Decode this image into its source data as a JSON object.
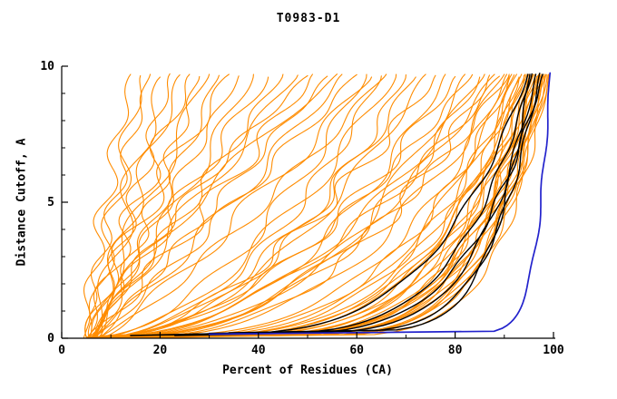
{
  "colors": {
    "model": "#ff8c00",
    "reference": "#000000",
    "best": "#2222cc",
    "axis": "#000000"
  },
  "chart_data": {
    "type": "line",
    "title": "T0983-D1",
    "xlabel": "Percent of Residues (CA)",
    "ylabel": "Distance Cutoff, A",
    "xlim": [
      0,
      100
    ],
    "ylim": [
      0,
      10
    ],
    "x_ticks": [
      0,
      20,
      40,
      60,
      80,
      100
    ],
    "y_ticks": [
      0,
      5,
      10
    ],
    "x_minor_ticks": [
      10,
      30,
      50,
      70,
      90
    ],
    "y_minor_ticks": [
      1,
      2,
      3,
      4,
      6,
      7,
      8,
      9
    ],
    "legend": "none",
    "grid": false,
    "curves": [
      {
        "c": "o",
        "x0": 4.5,
        "x1": 14,
        "k": 1.15,
        "w": 1.8,
        "f": 1.3,
        "p": 0.2,
        "ye": 9.7
      },
      {
        "c": "o",
        "x0": 5.5,
        "x1": 16,
        "k": 0.95,
        "w": 2.2,
        "f": 1.1,
        "p": 2.1,
        "ye": 9.65
      },
      {
        "c": "o",
        "x0": 5,
        "x1": 18,
        "k": 1.25,
        "w": 1.5,
        "f": 1.5,
        "p": 4.0,
        "ye": 9.7
      },
      {
        "c": "o",
        "x0": 6.5,
        "x1": 20,
        "k": 1.0,
        "w": 2.5,
        "f": 0.9,
        "p": 1.2,
        "ye": 9.6
      },
      {
        "c": "o",
        "x0": 5.8,
        "x1": 22,
        "k": 0.9,
        "w": 1.9,
        "f": 1.4,
        "p": 3.3,
        "ye": 9.72
      },
      {
        "c": "o",
        "x0": 7,
        "x1": 24,
        "k": 1.18,
        "w": 2.1,
        "f": 1.0,
        "p": 5.1,
        "ye": 9.68
      },
      {
        "c": "o",
        "x0": 5.2,
        "x1": 26,
        "k": 1.05,
        "w": 2.6,
        "f": 1.2,
        "p": 0.8,
        "ye": 9.7
      },
      {
        "c": "o",
        "x0": 6.8,
        "x1": 28,
        "k": 0.88,
        "w": 1.7,
        "f": 1.6,
        "p": 2.9,
        "ye": 9.62
      },
      {
        "c": "o",
        "x0": 5.6,
        "x1": 30,
        "k": 1.12,
        "w": 2.3,
        "f": 0.8,
        "p": 4.6,
        "ye": 9.7
      },
      {
        "c": "o",
        "x0": 7.5,
        "x1": 32,
        "k": 0.97,
        "w": 1.6,
        "f": 1.3,
        "p": 1.7,
        "ye": 9.66
      },
      {
        "c": "o",
        "x0": 5.1,
        "x1": 34,
        "k": 1.22,
        "w": 2.8,
        "f": 1.1,
        "p": 3.9,
        "ye": 9.7
      },
      {
        "c": "o",
        "x0": 6.3,
        "x1": 36,
        "k": 1.02,
        "w": 1.4,
        "f": 1.5,
        "p": 0.4,
        "ye": 9.64
      },
      {
        "c": "o",
        "x0": 5.9,
        "x1": 39,
        "k": 0.92,
        "w": 2.0,
        "f": 1.0,
        "p": 2.5,
        "ye": 9.7
      },
      {
        "c": "o",
        "x0": 7.2,
        "x1": 42,
        "k": 1.1,
        "w": 2.4,
        "f": 1.2,
        "p": 5.6,
        "ye": 9.6
      },
      {
        "c": "o",
        "x0": 5.4,
        "x1": 45,
        "k": 0.96,
        "w": 1.8,
        "f": 1.4,
        "p": 1.0,
        "ye": 9.7
      },
      {
        "c": "o",
        "x0": 6.6,
        "x1": 48,
        "k": 1.06,
        "w": 2.2,
        "f": 0.9,
        "p": 3.1,
        "ye": 9.67
      },
      {
        "c": "o",
        "x0": 5.3,
        "x1": 51,
        "k": 0.9,
        "w": 2.7,
        "f": 1.3,
        "p": 4.4,
        "ye": 9.7
      },
      {
        "c": "o",
        "x0": 7.8,
        "x1": 54,
        "k": 1.0,
        "w": 1.5,
        "f": 1.6,
        "p": 0.6,
        "ye": 9.63
      },
      {
        "c": "o",
        "x0": 5.7,
        "x1": 57,
        "k": 0.86,
        "w": 2.1,
        "f": 1.1,
        "p": 2.2,
        "ye": 9.7
      },
      {
        "c": "o",
        "x0": 6.9,
        "x1": 60,
        "k": 0.94,
        "w": 1.9,
        "f": 1.4,
        "p": 5.0,
        "ye": 9.69
      },
      {
        "c": "o",
        "x0": 8.5,
        "x1": 63,
        "k": 0.89,
        "w": 2.5,
        "f": 1.0,
        "p": 1.5,
        "ye": 9.6
      },
      {
        "c": "o",
        "x0": 7.4,
        "x1": 66,
        "k": 0.82,
        "w": 1.7,
        "f": 1.2,
        "p": 3.6,
        "ye": 9.7
      },
      {
        "c": "o",
        "x0": 6.1,
        "x1": 56,
        "k": 1.3,
        "w": 2.0,
        "f": 0.8,
        "p": 0.9,
        "ye": 9.71
      },
      {
        "c": "o",
        "x0": 8.0,
        "x1": 50,
        "k": 1.35,
        "w": 1.6,
        "f": 1.5,
        "p": 2.7,
        "ye": 9.65
      },
      {
        "c": "o",
        "x0": 6,
        "x1": 62,
        "k": 0.55,
        "w": 2.0,
        "f": 1.1,
        "p": 0.5,
        "ye": 9.7
      },
      {
        "c": "o",
        "x0": 7,
        "x1": 65,
        "k": 0.5,
        "w": 1.6,
        "f": 1.3,
        "p": 2.8,
        "ye": 9.64
      },
      {
        "c": "o",
        "x0": 8,
        "x1": 68,
        "k": 0.6,
        "w": 2.3,
        "f": 0.9,
        "p": 4.2,
        "ye": 9.7
      },
      {
        "c": "o",
        "x0": 6.5,
        "x1": 70,
        "k": 0.46,
        "w": 1.8,
        "f": 1.4,
        "p": 1.1,
        "ye": 9.68
      },
      {
        "c": "o",
        "x0": 9,
        "x1": 72,
        "k": 0.56,
        "w": 2.1,
        "f": 1.2,
        "p": 3.4,
        "ye": 9.6
      },
      {
        "c": "o",
        "x0": 7.2,
        "x1": 74,
        "k": 0.5,
        "w": 1.5,
        "f": 1.0,
        "p": 5.3,
        "ye": 9.7
      },
      {
        "c": "o",
        "x0": 10,
        "x1": 76,
        "k": 0.6,
        "w": 2.4,
        "f": 1.5,
        "p": 0.7,
        "ye": 9.66
      },
      {
        "c": "o",
        "x0": 8.2,
        "x1": 78,
        "k": 0.44,
        "w": 1.7,
        "f": 1.1,
        "p": 2.0,
        "ye": 9.7
      },
      {
        "c": "o",
        "x0": 6.2,
        "x1": 80,
        "k": 0.5,
        "w": 2.2,
        "f": 1.3,
        "p": 4.8,
        "ye": 9.62
      },
      {
        "c": "o",
        "x0": 9.5,
        "x1": 82,
        "k": 0.4,
        "w": 1.9,
        "f": 0.8,
        "p": 1.9,
        "ye": 9.7
      },
      {
        "c": "o",
        "x0": 7.6,
        "x1": 83.5,
        "k": 0.55,
        "w": 1.4,
        "f": 1.6,
        "p": 3.0,
        "ye": 9.69
      },
      {
        "c": "o",
        "x0": 10.5,
        "x1": 85,
        "k": 0.44,
        "w": 2.0,
        "f": 1.2,
        "p": 5.8,
        "ye": 9.6
      },
      {
        "c": "o",
        "x0": 8.4,
        "x1": 86,
        "k": 0.5,
        "w": 1.6,
        "f": 1.0,
        "p": 1.3,
        "ye": 9.7
      },
      {
        "c": "o",
        "x0": 11,
        "x1": 87,
        "k": 0.4,
        "w": 2.2,
        "f": 1.4,
        "p": 2.6,
        "ye": 9.67
      },
      {
        "c": "o",
        "x0": 9.2,
        "x1": 88,
        "k": 0.46,
        "w": 1.5,
        "f": 1.1,
        "p": 4.1,
        "ye": 9.7
      },
      {
        "c": "o",
        "x0": 7.8,
        "x1": 89,
        "k": 0.52,
        "w": 1.8,
        "f": 1.3,
        "p": 0.3,
        "ye": 9.63
      },
      {
        "c": "o",
        "x0": 12,
        "x1": 90,
        "k": 0.4,
        "w": 2.1,
        "f": 0.9,
        "p": 2.4,
        "ye": 9.7
      },
      {
        "c": "o",
        "x0": 10.2,
        "x1": 91,
        "k": 0.47,
        "w": 1.6,
        "f": 1.5,
        "p": 5.5,
        "ye": 9.7
      },
      {
        "c": "o",
        "x0": 6,
        "x1": 90.5,
        "k": 0.3,
        "w": 1.2,
        "f": 1.2,
        "p": 0.4,
        "ye": 9.7
      },
      {
        "c": "o",
        "x0": 8,
        "x1": 91,
        "k": 0.27,
        "w": 0.9,
        "f": 1.0,
        "p": 1.8,
        "ye": 9.65
      },
      {
        "c": "o",
        "x0": 10,
        "x1": 91.5,
        "k": 0.3,
        "w": 1.4,
        "f": 1.4,
        "p": 3.2,
        "ye": 9.7
      },
      {
        "c": "o",
        "x0": 7,
        "x1": 92,
        "k": 0.24,
        "w": 1.0,
        "f": 1.1,
        "p": 4.7,
        "ye": 9.68
      },
      {
        "c": "o",
        "x0": 12,
        "x1": 92.5,
        "k": 0.28,
        "w": 1.3,
        "f": 1.3,
        "p": 0.9,
        "ye": 9.7
      },
      {
        "c": "o",
        "x0": 9,
        "x1": 93,
        "k": 0.22,
        "w": 0.8,
        "f": 0.9,
        "p": 2.3,
        "ye": 9.6
      },
      {
        "c": "o",
        "x0": 14,
        "x1": 93.5,
        "k": 0.26,
        "w": 1.1,
        "f": 1.5,
        "p": 3.8,
        "ye": 9.7
      },
      {
        "c": "o",
        "x0": 11,
        "x1": 94,
        "k": 0.2,
        "w": 1.2,
        "f": 1.2,
        "p": 5.2,
        "ye": 9.66
      },
      {
        "c": "o",
        "x0": 8.5,
        "x1": 94.5,
        "k": 0.24,
        "w": 0.9,
        "f": 1.0,
        "p": 1.4,
        "ye": 9.7
      },
      {
        "c": "o",
        "x0": 13,
        "x1": 95,
        "k": 0.19,
        "w": 1.0,
        "f": 1.3,
        "p": 2.9,
        "ye": 9.7
      },
      {
        "c": "o",
        "x0": 10.5,
        "x1": 95.3,
        "k": 0.22,
        "w": 1.3,
        "f": 1.1,
        "p": 4.3,
        "ye": 9.64
      },
      {
        "c": "o",
        "x0": 15,
        "x1": 95.7,
        "k": 0.18,
        "w": 0.8,
        "f": 1.4,
        "p": 0.6,
        "ye": 9.7
      },
      {
        "c": "o",
        "x0": 12.5,
        "x1": 96,
        "k": 0.21,
        "w": 1.1,
        "f": 0.9,
        "p": 2.1,
        "ye": 9.69
      },
      {
        "c": "o",
        "x0": 9.8,
        "x1": 96.3,
        "k": 0.17,
        "w": 0.9,
        "f": 1.2,
        "p": 3.6,
        "ye": 9.7
      },
      {
        "c": "o",
        "x0": 16,
        "x1": 96.6,
        "k": 0.2,
        "w": 1.2,
        "f": 1.5,
        "p": 5.0,
        "ye": 9.62
      },
      {
        "c": "o",
        "x0": 11.5,
        "x1": 97,
        "k": 0.16,
        "w": 0.8,
        "f": 1.0,
        "p": 1.1,
        "ye": 9.7
      },
      {
        "c": "o",
        "x0": 14.5,
        "x1": 97.2,
        "k": 0.19,
        "w": 1.0,
        "f": 1.3,
        "p": 2.7,
        "ye": 9.67
      },
      {
        "c": "o",
        "x0": 10,
        "x1": 97.5,
        "k": 0.15,
        "w": 0.9,
        "f": 1.1,
        "p": 4.5,
        "ye": 9.7
      },
      {
        "c": "o",
        "x0": 17,
        "x1": 97.8,
        "k": 0.18,
        "w": 1.1,
        "f": 1.4,
        "p": 0.2,
        "ye": 9.7
      },
      {
        "c": "o",
        "x0": 13.5,
        "x1": 98,
        "k": 0.14,
        "w": 0.8,
        "f": 1.2,
        "p": 1.9,
        "ye": 9.63
      },
      {
        "c": "o",
        "x0": 15.5,
        "x1": 98.2,
        "k": 0.17,
        "w": 1.0,
        "f": 0.9,
        "p": 3.3,
        "ye": 9.7
      },
      {
        "c": "o",
        "x0": 12,
        "x1": 98.5,
        "k": 0.13,
        "w": 0.7,
        "f": 1.3,
        "p": 4.9,
        "ye": 9.7
      },
      {
        "c": "o",
        "x0": 18,
        "x1": 98.7,
        "k": 0.16,
        "w": 0.9,
        "f": 1.1,
        "p": 0.8,
        "ye": 9.68
      },
      {
        "c": "o",
        "x0": 14,
        "x1": 99,
        "k": 0.12,
        "w": 0.7,
        "f": 1.4,
        "p": 2.4,
        "ye": 9.7
      },
      {
        "c": "o",
        "x0": 16.5,
        "x1": 99.2,
        "k": 0.15,
        "w": 0.8,
        "f": 1.0,
        "p": 3.9,
        "ye": 9.7
      },
      {
        "c": "o",
        "x0": 19,
        "x1": 93,
        "k": 0.25,
        "w": 1.2,
        "f": 1.2,
        "p": 5.4,
        "ye": 9.6
      },
      {
        "c": "o",
        "x0": 20,
        "x1": 94.2,
        "k": 0.23,
        "w": 1.0,
        "f": 1.3,
        "p": 1.6,
        "ye": 9.7
      },
      {
        "c": "o",
        "x0": 18.5,
        "x1": 95.8,
        "k": 0.2,
        "w": 1.1,
        "f": 1.1,
        "p": 3.1,
        "ye": 9.7
      },
      {
        "c": "o",
        "x0": 21,
        "x1": 96.8,
        "k": 0.18,
        "w": 0.9,
        "f": 1.4,
        "p": 4.6,
        "ye": 9.65
      },
      {
        "c": "o",
        "x0": 22,
        "x1": 97.9,
        "k": 0.16,
        "w": 0.8,
        "f": 1.2,
        "p": 0.1,
        "ye": 9.7
      },
      {
        "c": "k",
        "x0": 14,
        "x1": 94.8,
        "k": 0.24,
        "w": 0.6,
        "f": 1.1,
        "p": 1.0,
        "ye": 9.7,
        "y0": 0.1
      },
      {
        "c": "k",
        "x0": 20,
        "x1": 95.6,
        "k": 0.2,
        "w": 0.5,
        "f": 1.3,
        "p": 2.6,
        "ye": 9.72,
        "y0": 0.12
      },
      {
        "c": "k",
        "x0": 26,
        "x1": 96.4,
        "k": 0.17,
        "w": 0.6,
        "f": 1.0,
        "p": 4.0,
        "ye": 9.7,
        "y0": 0.15
      },
      {
        "c": "k",
        "x0": 30,
        "x1": 97.2,
        "k": 0.15,
        "w": 0.5,
        "f": 1.2,
        "p": 0.7,
        "ye": 9.74,
        "y0": 0.18
      },
      {
        "c": "k",
        "x0": 23,
        "x1": 97.8,
        "k": 0.2,
        "w": 0.6,
        "f": 1.4,
        "p": 3.5,
        "ye": 9.7,
        "y0": 0.1
      },
      {
        "c": "k",
        "x0": 34,
        "x1": 95.2,
        "k": 0.13,
        "w": 0.5,
        "f": 1.1,
        "p": 5.1,
        "ye": 9.7,
        "y0": 0.2
      },
      {
        "c": "b",
        "x0": 30,
        "x1": 99.3,
        "k": 0.04,
        "w": 0.3,
        "f": 1.0,
        "p": 0.0,
        "ye": 9.75,
        "y0": 0.15
      }
    ]
  }
}
